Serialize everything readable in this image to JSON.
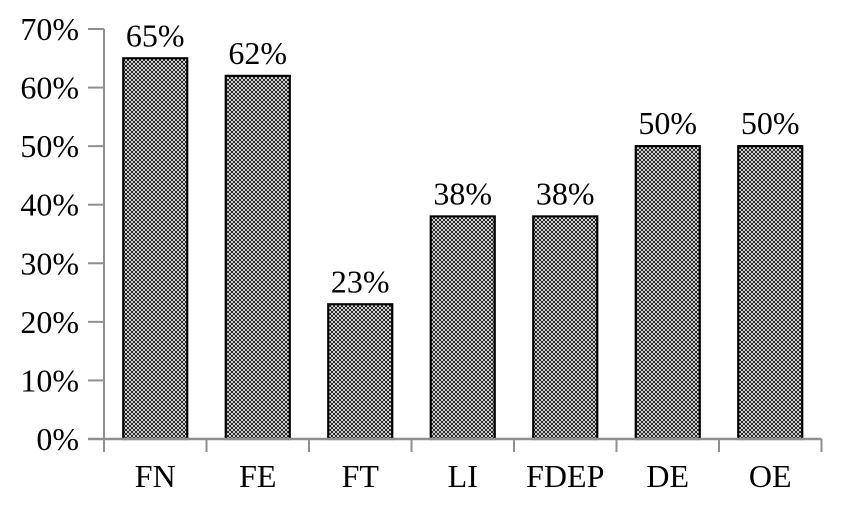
{
  "figure": {
    "background_color": "#ffffff"
  },
  "chart_data": {
    "type": "bar",
    "title": "",
    "xlabel": "",
    "ylabel": "",
    "categories": [
      "FN",
      "FE",
      "FT",
      "LI",
      "FDEP",
      "DE",
      "OE"
    ],
    "values": [
      65,
      62,
      23,
      38,
      38,
      50,
      50
    ],
    "value_labels": [
      "65%",
      "62%",
      "23%",
      "38%",
      "38%",
      "50%",
      "50%"
    ],
    "yticks": [
      0,
      10,
      20,
      30,
      40,
      50,
      60,
      70
    ],
    "ytick_labels": [
      "0%",
      "10%",
      "20%",
      "30%",
      "40%",
      "50%",
      "60%",
      "70%"
    ],
    "ylim": [
      0,
      70
    ],
    "grid": false,
    "legend_position": "none",
    "bar_fill_style": "woven-crosshatch black on white",
    "bar_border_color": "#000000",
    "axis_color": "#8f8f8f",
    "text_color": "#000000"
  }
}
